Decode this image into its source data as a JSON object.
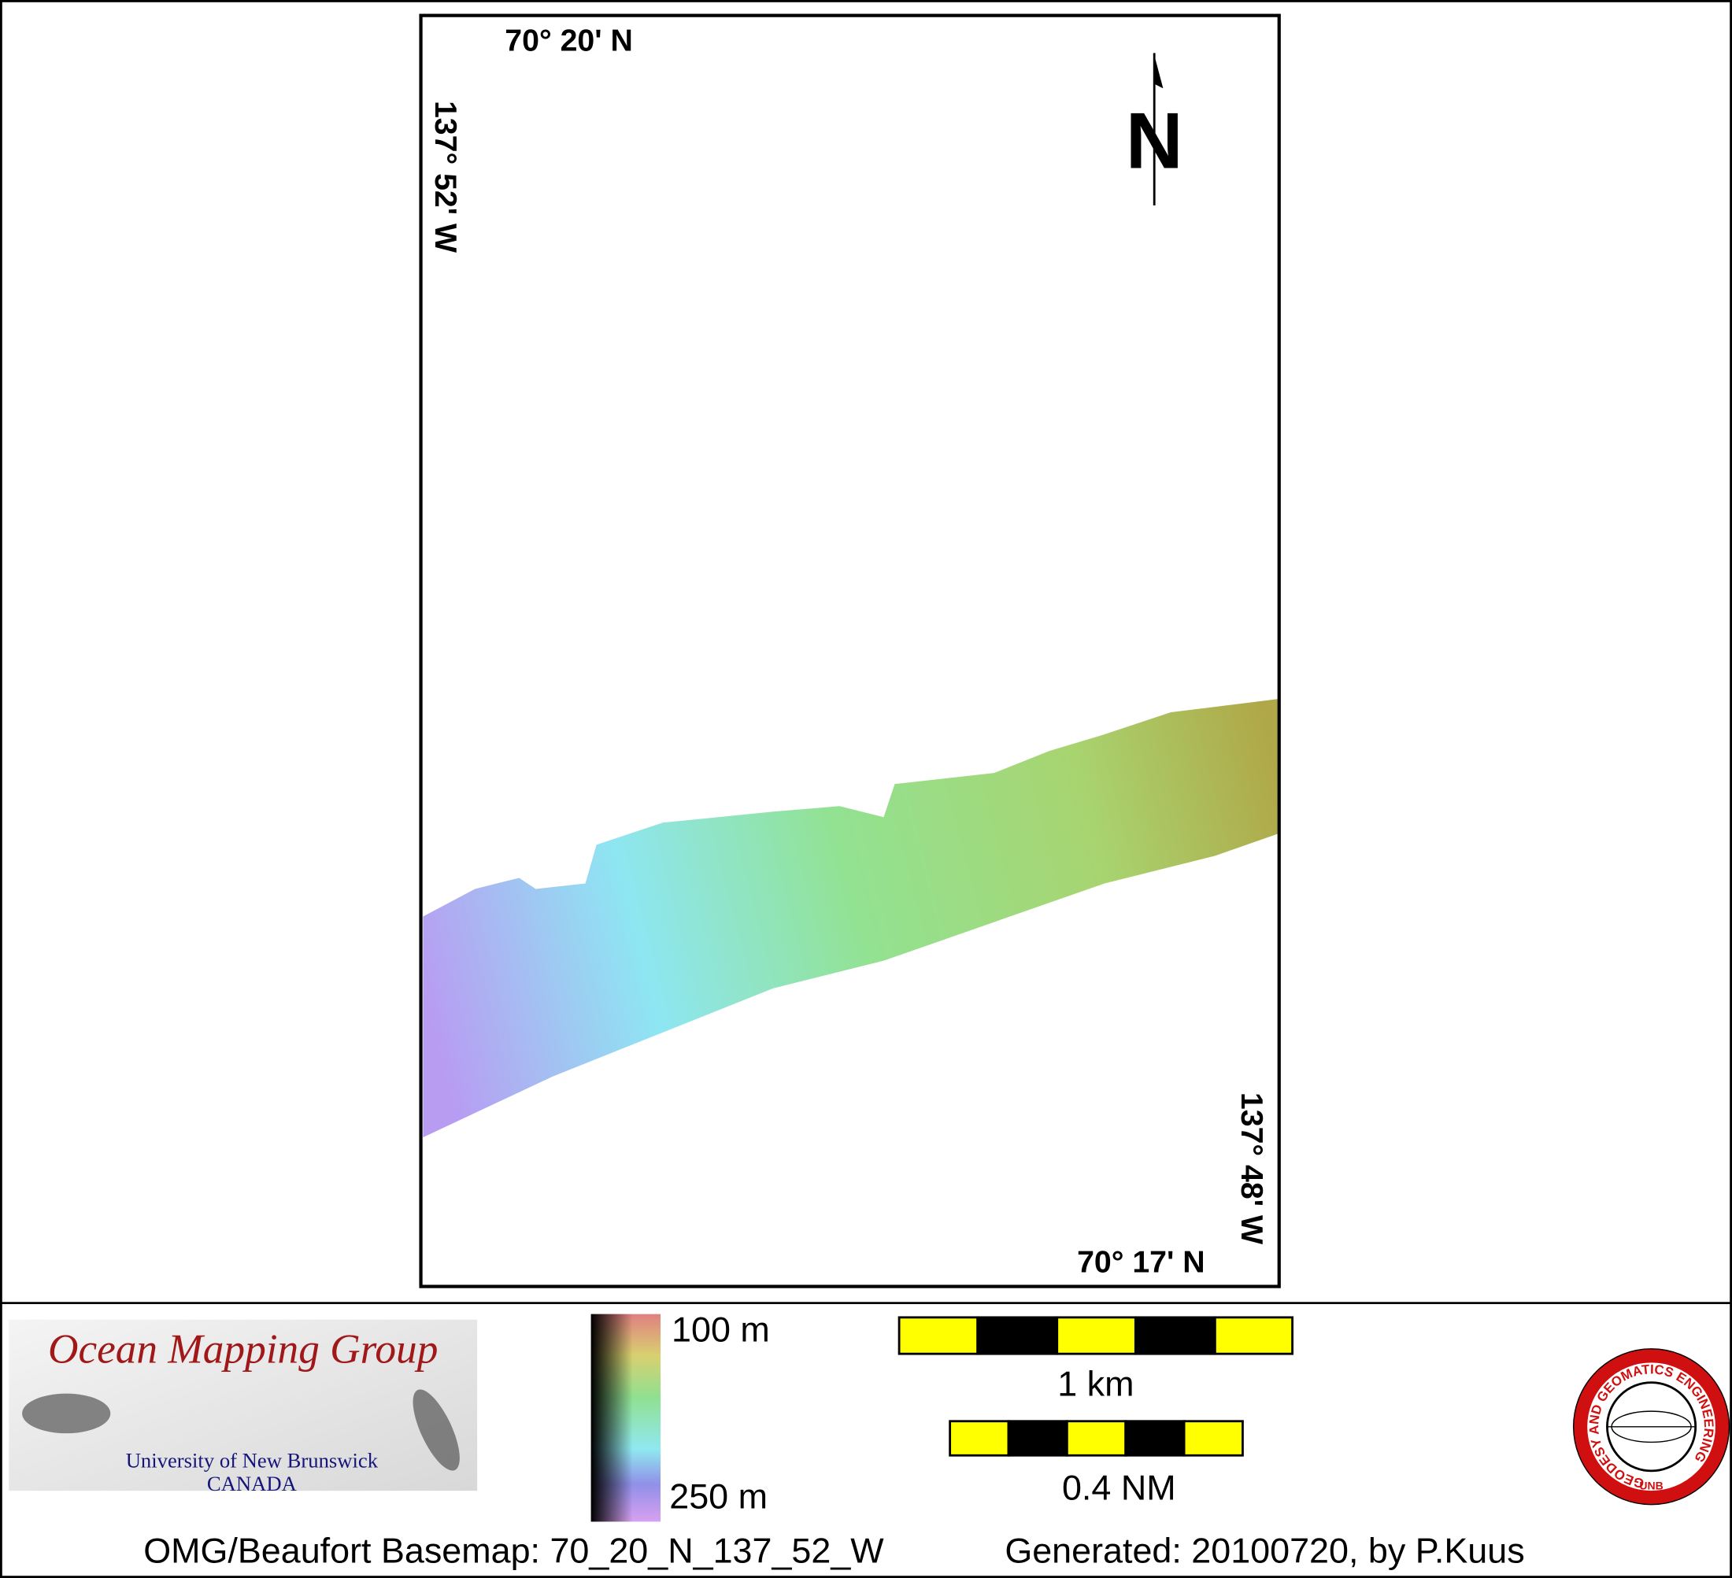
{
  "map": {
    "lat_top": "70° 20' N",
    "lat_bottom": "70° 17' N",
    "lon_left": "137° 52' W",
    "lon_right": "137° 48' W",
    "north": "N"
  },
  "logo": {
    "title": "Ocean Mapping Group",
    "line1": "University of New Brunswick",
    "line2": "CANADA"
  },
  "legend": {
    "top": "100 m",
    "bottom": "250 m"
  },
  "scale": {
    "km": "1 km",
    "nm": "0.4 NM"
  },
  "badge": {
    "ring": "GEODESY AND GEOMATICS ENGINEERING",
    "center": "UNB"
  },
  "footer": {
    "basemap": "OMG/Beaufort Basemap: 70_20_N_137_52_W",
    "generated": "Generated: 20100720, by P.Kuus"
  }
}
